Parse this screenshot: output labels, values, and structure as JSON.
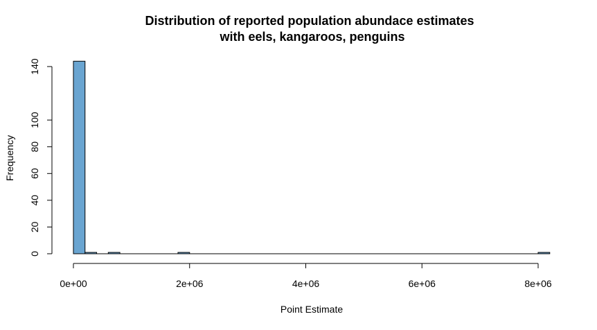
{
  "chart_data": {
    "type": "histogram",
    "title_line1": "Distribution of reported population abundace estimates",
    "title_line2": "with eels, kangaroos, penguins",
    "xlabel": "Point Estimate",
    "ylabel": "Frequency",
    "xlim": [
      0,
      8200000
    ],
    "ylim": [
      0,
      140
    ],
    "bin_width": 200000,
    "x_ticks": [
      0,
      2000000,
      4000000,
      6000000,
      8000000
    ],
    "x_tick_labels": [
      "0e+00",
      "2e+06",
      "4e+06",
      "6e+06",
      "8e+06"
    ],
    "y_ticks": [
      0,
      20,
      40,
      60,
      80,
      100,
      140
    ],
    "y_tick_labels": [
      "0",
      "20",
      "40",
      "60",
      "80",
      "100",
      "140"
    ],
    "bars": [
      {
        "x0": 0,
        "x1": 200000,
        "count": 144
      },
      {
        "x0": 200000,
        "x1": 400000,
        "count": 1
      },
      {
        "x0": 600000,
        "x1": 800000,
        "count": 1
      },
      {
        "x0": 1800000,
        "x1": 2000000,
        "count": 1
      },
      {
        "x0": 8000000,
        "x1": 8200000,
        "count": 1
      }
    ],
    "bar_color": "#6aa5d1",
    "grid": false
  }
}
